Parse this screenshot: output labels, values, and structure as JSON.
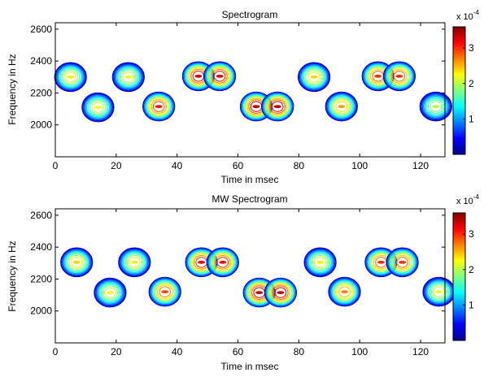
{
  "chart_data": [
    {
      "type": "contour",
      "title": "Spectrogram",
      "xlabel": "Time in msec",
      "ylabel": "Frequency in Hz",
      "xlim": [
        0,
        128
      ],
      "ylim": [
        1800,
        2640
      ],
      "x_ticks": [
        0,
        20,
        40,
        60,
        80,
        100,
        120
      ],
      "y_ticks": [
        2000,
        2200,
        2400,
        2600
      ],
      "colorbar": {
        "clim": [
          0,
          3.6
        ],
        "ticks": [
          1,
          2,
          3
        ],
        "exponent": "x 10",
        "exponent_power": "-4",
        "colormap": "jet"
      },
      "components": [
        {
          "t": 5,
          "f": 2300,
          "amp": 2.3
        },
        {
          "t": 14,
          "f": 2110,
          "amp": 2.2
        },
        {
          "t": 24,
          "f": 2300,
          "amp": 2.2
        },
        {
          "t": 34,
          "f": 2115,
          "amp": 3.1
        },
        {
          "t": 47,
          "f": 2305,
          "amp": 3.3
        },
        {
          "t": 54,
          "f": 2305,
          "amp": 3.3
        },
        {
          "t": 66,
          "f": 2115,
          "amp": 3.4
        },
        {
          "t": 73,
          "f": 2115,
          "amp": 3.4
        },
        {
          "t": 85,
          "f": 2300,
          "amp": 2.4
        },
        {
          "t": 94,
          "f": 2115,
          "amp": 2.6
        },
        {
          "t": 106,
          "f": 2305,
          "amp": 3.0
        },
        {
          "t": 113,
          "f": 2305,
          "amp": 3.0
        },
        {
          "t": 125,
          "f": 2115,
          "amp": 2.0
        }
      ]
    },
    {
      "type": "contour",
      "title": "MW Spectrogram",
      "xlabel": "Time in msec",
      "ylabel": "Frequency in Hz",
      "xlim": [
        0,
        128
      ],
      "ylim": [
        1800,
        2640
      ],
      "x_ticks": [
        0,
        20,
        40,
        60,
        80,
        100,
        120
      ],
      "y_ticks": [
        2000,
        2200,
        2400,
        2600
      ],
      "colorbar": {
        "clim": [
          0,
          3.6
        ],
        "ticks": [
          1,
          2,
          3
        ],
        "exponent": "x 10",
        "exponent_power": "-4",
        "colormap": "jet"
      },
      "components": [
        {
          "t": 7,
          "f": 2305,
          "amp": 2.4
        },
        {
          "t": 18,
          "f": 2115,
          "amp": 2.2
        },
        {
          "t": 26,
          "f": 2305,
          "amp": 2.3
        },
        {
          "t": 36,
          "f": 2120,
          "amp": 2.9
        },
        {
          "t": 48,
          "f": 2305,
          "amp": 3.2
        },
        {
          "t": 55,
          "f": 2305,
          "amp": 3.2
        },
        {
          "t": 67,
          "f": 2115,
          "amp": 3.4
        },
        {
          "t": 74,
          "f": 2115,
          "amp": 3.4
        },
        {
          "t": 87,
          "f": 2305,
          "amp": 2.3
        },
        {
          "t": 95,
          "f": 2120,
          "amp": 2.7
        },
        {
          "t": 107,
          "f": 2305,
          "amp": 3.0
        },
        {
          "t": 114,
          "f": 2305,
          "amp": 3.0
        },
        {
          "t": 126,
          "f": 2120,
          "amp": 2.2
        }
      ]
    }
  ]
}
